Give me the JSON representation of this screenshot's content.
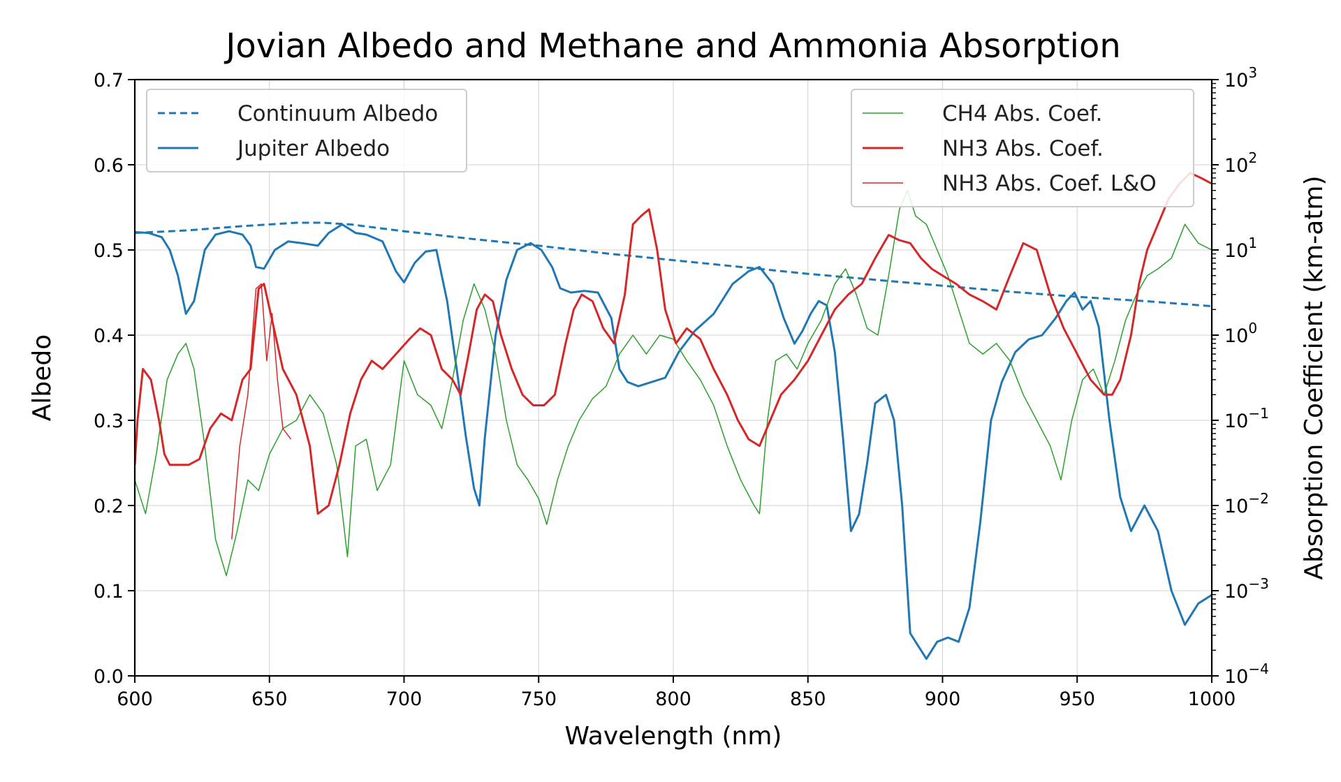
{
  "chart_data": {
    "type": "line",
    "title": "Jovian Albedo and Methane and Ammonia Absorption",
    "xlabel": "Wavelength (nm)",
    "ylabel": "Albedo",
    "y2label": "Absorption Coefficient (km-atm)",
    "xlim": [
      600,
      1000
    ],
    "ylim": [
      0,
      0.7
    ],
    "y2lim": [
      0.0001,
      1000
    ],
    "y2scale": "log",
    "grid": true,
    "x_ticks": [
      600,
      650,
      700,
      750,
      800,
      850,
      900,
      950,
      1000
    ],
    "y_ticks": [
      0.0,
      0.1,
      0.2,
      0.3,
      0.4,
      0.5,
      0.6,
      0.7
    ],
    "y_tick_labels": [
      "0.0",
      "0.1",
      "0.2",
      "0.3",
      "0.4",
      "0.5",
      "0.6",
      "0.7"
    ],
    "y2_tick_exponents": [
      -4,
      -3,
      -2,
      -1,
      0,
      1,
      2,
      3
    ],
    "y2_tick_base": "10",
    "legends": [
      {
        "placement": "upper-left",
        "entries": [
          "Continuum Albedo",
          "Jupiter Albedo"
        ]
      },
      {
        "placement": "upper-right",
        "entries": [
          "CH4 Abs. Coef.",
          "NH3 Abs. Coef.",
          "NH3 Abs. Coef. L&O"
        ]
      }
    ],
    "series": [
      {
        "name": "Continuum Albedo",
        "axis": "left",
        "color": "#1f77b4",
        "style": "dashed",
        "x": [
          600,
          620,
          640,
          660,
          670,
          680,
          700,
          725,
          750,
          775,
          800,
          825,
          850,
          875,
          900,
          925,
          950,
          975,
          1000
        ],
        "y": [
          0.52,
          0.523,
          0.528,
          0.532,
          0.532,
          0.53,
          0.522,
          0.513,
          0.505,
          0.496,
          0.488,
          0.48,
          0.472,
          0.465,
          0.458,
          0.451,
          0.445,
          0.44,
          0.434
        ]
      },
      {
        "name": "Jupiter Albedo",
        "axis": "left",
        "color": "#1f77b4",
        "style": "solid",
        "x": [
          600,
          605,
          610,
          613,
          616,
          619,
          622,
          626,
          630,
          635,
          640,
          643,
          645,
          648,
          652,
          657,
          662,
          668,
          672,
          677,
          682,
          686,
          692,
          697,
          700,
          704,
          708,
          712,
          716,
          720,
          723,
          726,
          728,
          730,
          734,
          738,
          742,
          747,
          751,
          755,
          758,
          762,
          767,
          772,
          777,
          780,
          783,
          787,
          792,
          797,
          802,
          808,
          815,
          822,
          828,
          832,
          837,
          841,
          845,
          848,
          851,
          854,
          857,
          860,
          863,
          866,
          869,
          872,
          875,
          879,
          882,
          885,
          888,
          891,
          894,
          898,
          902,
          906,
          910,
          914,
          918,
          922,
          927,
          932,
          937,
          942,
          946,
          949,
          952,
          955,
          958,
          962,
          966,
          970,
          975,
          980,
          985,
          990,
          995,
          1000
        ],
        "y": [
          0.521,
          0.52,
          0.515,
          0.5,
          0.47,
          0.425,
          0.44,
          0.5,
          0.518,
          0.522,
          0.518,
          0.505,
          0.48,
          0.478,
          0.5,
          0.51,
          0.508,
          0.505,
          0.52,
          0.53,
          0.52,
          0.518,
          0.51,
          0.475,
          0.462,
          0.485,
          0.498,
          0.5,
          0.44,
          0.35,
          0.28,
          0.22,
          0.2,
          0.28,
          0.4,
          0.465,
          0.5,
          0.508,
          0.5,
          0.48,
          0.455,
          0.45,
          0.452,
          0.45,
          0.42,
          0.36,
          0.345,
          0.34,
          0.345,
          0.35,
          0.38,
          0.405,
          0.425,
          0.46,
          0.475,
          0.48,
          0.46,
          0.42,
          0.39,
          0.405,
          0.425,
          0.44,
          0.435,
          0.38,
          0.28,
          0.17,
          0.19,
          0.25,
          0.32,
          0.33,
          0.3,
          0.2,
          0.05,
          0.035,
          0.02,
          0.04,
          0.045,
          0.04,
          0.08,
          0.18,
          0.3,
          0.345,
          0.38,
          0.395,
          0.4,
          0.42,
          0.44,
          0.45,
          0.43,
          0.44,
          0.41,
          0.3,
          0.21,
          0.17,
          0.2,
          0.17,
          0.1,
          0.06,
          0.085,
          0.095
        ]
      },
      {
        "name": "CH4 Abs. Coef.",
        "axis": "right",
        "color": "#2ca02c",
        "style": "solid-thin",
        "x": [
          600,
          604,
          608,
          612,
          616,
          619,
          622,
          626,
          630,
          634,
          638,
          642,
          646,
          650,
          655,
          660,
          665,
          670,
          675,
          679,
          682,
          686,
          690,
          695,
          700,
          705,
          710,
          714,
          718,
          722,
          726,
          730,
          734,
          738,
          742,
          746,
          750,
          753,
          757,
          761,
          765,
          770,
          775,
          780,
          785,
          790,
          795,
          800,
          805,
          810,
          815,
          820,
          825,
          830,
          832,
          835,
          838,
          842,
          846,
          850,
          855,
          860,
          864,
          868,
          872,
          876,
          880,
          884,
          887,
          890,
          894,
          898,
          902,
          906,
          910,
          915,
          920,
          925,
          930,
          935,
          940,
          944,
          948,
          952,
          956,
          960,
          964,
          968,
          972,
          976,
          980,
          985,
          990,
          995,
          1000
        ],
        "y": [
          0.02,
          0.008,
          0.04,
          0.3,
          0.6,
          0.8,
          0.4,
          0.05,
          0.004,
          0.0015,
          0.005,
          0.02,
          0.015,
          0.04,
          0.08,
          0.1,
          0.2,
          0.12,
          0.03,
          0.0025,
          0.05,
          0.06,
          0.015,
          0.03,
          0.5,
          0.2,
          0.15,
          0.08,
          0.3,
          1.5,
          4,
          2,
          0.6,
          0.1,
          0.03,
          0.02,
          0.012,
          0.006,
          0.02,
          0.05,
          0.1,
          0.18,
          0.25,
          0.6,
          1.0,
          0.6,
          1.0,
          0.9,
          0.5,
          0.3,
          0.15,
          0.05,
          0.02,
          0.01,
          0.008,
          0.1,
          0.5,
          0.6,
          0.4,
          0.8,
          1.5,
          4.0,
          6.0,
          3.0,
          1.2,
          1.0,
          5.0,
          30,
          50,
          25,
          20,
          10,
          5,
          2,
          0.8,
          0.6,
          0.8,
          0.5,
          0.2,
          0.1,
          0.05,
          0.02,
          0.1,
          0.3,
          0.4,
          0.2,
          0.5,
          1.5,
          3.0,
          5.0,
          6.0,
          8.0,
          20,
          12,
          10
        ]
      },
      {
        "name": "NH3 Abs. Coef.",
        "axis": "right",
        "color": "#d62728",
        "style": "solid",
        "x": [
          600,
          601,
          603,
          606,
          609,
          611,
          613,
          616,
          620,
          624,
          628,
          632,
          636,
          640,
          643,
          646,
          648,
          651,
          655,
          660,
          665,
          668,
          672,
          676,
          680,
          684,
          688,
          692,
          697,
          702,
          706,
          710,
          714,
          718,
          721,
          724,
          727,
          730,
          733,
          736,
          740,
          744,
          748,
          752,
          756,
          760,
          763,
          766,
          770,
          774,
          778,
          782,
          785,
          788,
          791,
          794,
          797,
          801,
          805,
          810,
          815,
          820,
          824,
          828,
          832,
          836,
          840,
          845,
          850,
          855,
          860,
          865,
          870,
          875,
          880,
          884,
          888,
          892,
          896,
          900,
          905,
          910,
          915,
          920,
          925,
          930,
          935,
          940,
          945,
          950,
          955,
          960,
          963,
          966,
          970,
          973,
          976,
          980,
          984,
          988,
          992,
          996,
          1000
        ],
        "y": [
          0.03,
          0.1,
          0.4,
          0.3,
          0.1,
          0.04,
          0.03,
          0.03,
          0.03,
          0.035,
          0.08,
          0.12,
          0.1,
          0.3,
          0.4,
          3.5,
          4.0,
          1.5,
          0.4,
          0.2,
          0.05,
          0.008,
          0.01,
          0.03,
          0.12,
          0.3,
          0.5,
          0.4,
          0.6,
          0.9,
          1.2,
          1.0,
          0.4,
          0.3,
          0.2,
          0.6,
          2.0,
          3.0,
          2.5,
          1.0,
          0.4,
          0.2,
          0.15,
          0.15,
          0.2,
          0.8,
          2.0,
          3.0,
          2.5,
          1.2,
          0.8,
          3.0,
          20,
          25,
          30,
          10,
          2.0,
          0.8,
          1.2,
          0.9,
          0.4,
          0.2,
          0.1,
          0.06,
          0.05,
          0.1,
          0.2,
          0.3,
          0.5,
          1.0,
          2.0,
          3.0,
          4.0,
          8.0,
          15,
          13,
          12,
          8,
          6,
          5,
          4,
          3,
          2.5,
          2.0,
          5.0,
          12,
          10,
          3.0,
          1.2,
          0.6,
          0.3,
          0.2,
          0.2,
          0.3,
          1.0,
          4.0,
          10,
          20,
          40,
          60,
          80,
          70,
          60
        ]
      },
      {
        "name": "NH3 Abs. Coef. L&O",
        "axis": "right",
        "color": "#d62728",
        "style": "solid-thin",
        "x": [
          636,
          639,
          642,
          645,
          647,
          649,
          651,
          653,
          655,
          658
        ],
        "y": [
          0.004,
          0.05,
          0.2,
          3.5,
          4.0,
          0.5,
          1.8,
          0.3,
          0.08,
          0.06
        ]
      }
    ]
  }
}
